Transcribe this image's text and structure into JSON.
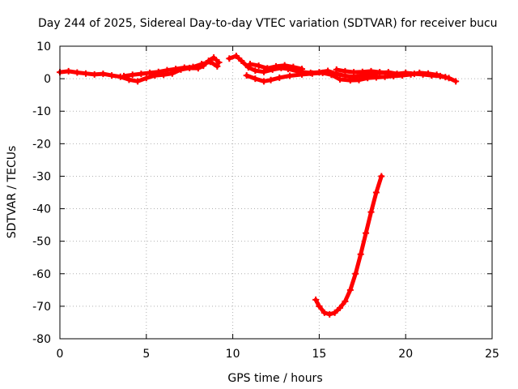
{
  "chart_data": {
    "type": "scatter",
    "title": "Day 244 of 2025, Sidereal Day-to-day VTEC variation (SDTVAR) for receiver bucu",
    "xlabel": "GPS time / hours",
    "ylabel": "SDTVAR / TECUs",
    "xlim": [
      0,
      25
    ],
    "ylim": [
      -80,
      10
    ],
    "xticks": [
      0,
      5,
      10,
      15,
      20,
      25
    ],
    "yticks": [
      10,
      0,
      -10,
      -20,
      -30,
      -40,
      -50,
      -60,
      -70,
      -80
    ],
    "grid": true,
    "series": [
      {
        "name": "SDTVAR",
        "color": "#ff0000",
        "segments": [
          [
            [
              0.0,
              2.0
            ],
            [
              0.5,
              2.3
            ],
            [
              1.0,
              1.9
            ],
            [
              1.5,
              1.6
            ],
            [
              2.0,
              1.3
            ],
            [
              2.5,
              1.5
            ],
            [
              3.0,
              1.0
            ],
            [
              3.5,
              0.6
            ],
            [
              4.0,
              -0.3
            ],
            [
              4.5,
              -0.8
            ],
            [
              5.0,
              0.2
            ],
            [
              5.5,
              1.0
            ],
            [
              6.0,
              1.2
            ],
            [
              6.5,
              1.6
            ],
            [
              7.0,
              2.8
            ],
            [
              7.5,
              3.3
            ],
            [
              8.0,
              3.2
            ],
            [
              8.3,
              4.0
            ],
            [
              8.6,
              5.5
            ],
            [
              8.9,
              6.5
            ],
            [
              9.2,
              5.0
            ]
          ],
          [
            [
              3.7,
              0.8
            ],
            [
              4.2,
              1.2
            ],
            [
              4.7,
              1.5
            ],
            [
              5.2,
              1.8
            ],
            [
              5.7,
              2.1
            ],
            [
              6.2,
              2.6
            ],
            [
              6.7,
              3.0
            ],
            [
              7.2,
              3.4
            ],
            [
              7.7,
              3.6
            ],
            [
              8.2,
              4.5
            ],
            [
              8.7,
              5.2
            ],
            [
              9.1,
              3.8
            ]
          ],
          [
            [
              9.8,
              6.2
            ],
            [
              10.2,
              7.0
            ],
            [
              10.5,
              5.5
            ],
            [
              10.9,
              3.5
            ],
            [
              11.3,
              2.5
            ],
            [
              11.8,
              2.1
            ],
            [
              12.3,
              2.8
            ],
            [
              12.8,
              3.3
            ],
            [
              13.2,
              3.0
            ],
            [
              13.8,
              2.2
            ],
            [
              14.5,
              1.8
            ],
            [
              15.0,
              2.0
            ],
            [
              15.5,
              2.4
            ],
            [
              16.0,
              1.5
            ],
            [
              16.5,
              0.9
            ],
            [
              17.0,
              0.6
            ],
            [
              17.5,
              1.0
            ],
            [
              18.0,
              1.3
            ],
            [
              18.5,
              1.8
            ],
            [
              19.0,
              2.0
            ],
            [
              19.5,
              1.5
            ],
            [
              20.0,
              1.8
            ],
            [
              20.5,
              1.5
            ],
            [
              21.0,
              1.3
            ],
            [
              21.5,
              1.0
            ],
            [
              22.0,
              0.8
            ],
            [
              22.5,
              0.2
            ],
            [
              22.9,
              -0.8
            ]
          ],
          [
            [
              10.8,
              1.0
            ],
            [
              11.3,
              0.0
            ],
            [
              11.8,
              -0.8
            ],
            [
              12.2,
              -0.4
            ],
            [
              12.7,
              0.3
            ],
            [
              13.3,
              0.9
            ],
            [
              14.0,
              1.3
            ],
            [
              14.6,
              1.6
            ],
            [
              15.2,
              1.8
            ],
            [
              15.7,
              1.2
            ],
            [
              16.2,
              -0.2
            ],
            [
              16.8,
              -0.5
            ],
            [
              17.3,
              -0.4
            ],
            [
              17.8,
              0.2
            ],
            [
              18.3,
              0.4
            ],
            [
              18.8,
              0.6
            ],
            [
              19.3,
              0.8
            ],
            [
              19.8,
              1.0
            ],
            [
              20.3,
              1.3
            ],
            [
              20.8,
              1.8
            ],
            [
              21.3,
              1.6
            ],
            [
              21.8,
              1.2
            ],
            [
              22.3,
              0.5
            ]
          ],
          [
            [
              11.0,
              4.5
            ],
            [
              11.5,
              4.0
            ],
            [
              12.0,
              3.2
            ],
            [
              12.5,
              3.8
            ],
            [
              13.0,
              4.1
            ],
            [
              13.5,
              3.6
            ],
            [
              14.0,
              3.0
            ]
          ],
          [
            [
              16.0,
              2.8
            ],
            [
              16.5,
              2.3
            ],
            [
              17.0,
              2.0
            ],
            [
              17.5,
              2.1
            ],
            [
              18.0,
              2.3
            ],
            [
              18.5,
              2.0
            ],
            [
              19.0,
              1.8
            ]
          ],
          [
            [
              14.8,
              -68.0
            ],
            [
              15.0,
              -70.0
            ],
            [
              15.3,
              -72.0
            ],
            [
              15.6,
              -72.5
            ],
            [
              15.9,
              -72.0
            ],
            [
              16.2,
              -70.5
            ],
            [
              16.5,
              -68.5
            ],
            [
              16.8,
              -65.0
            ],
            [
              17.1,
              -60.0
            ],
            [
              17.4,
              -54.0
            ],
            [
              17.7,
              -47.5
            ],
            [
              18.0,
              -41.0
            ],
            [
              18.3,
              -35.0
            ],
            [
              18.6,
              -30.0
            ]
          ]
        ]
      }
    ]
  }
}
